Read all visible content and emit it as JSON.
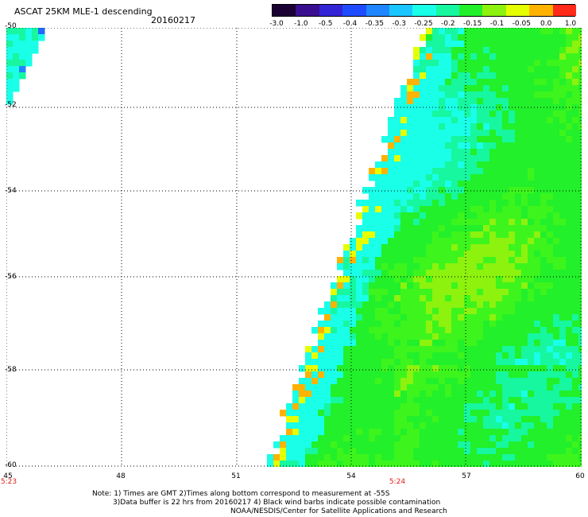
{
  "header": {
    "title": "ASCAT 25KM MLE-1 descending",
    "date": "20160217"
  },
  "colorbar": {
    "labels": [
      "-3.0",
      "-1.0",
      "-0.5",
      "-0.4",
      "-0.35",
      "-0.3",
      "-0.25",
      "-0.2",
      "-0.15",
      "-0.1",
      "-0.05",
      "0.0",
      "1.0"
    ],
    "colors": [
      "#1b0033",
      "#3a0f8f",
      "#3324d6",
      "#1f4bff",
      "#1f86ff",
      "#19c6ff",
      "#1affe8",
      "#16f7a0",
      "#22f02a",
      "#8cf20e",
      "#e6ff00",
      "#ffb300",
      "#ff2a1a"
    ]
  },
  "axes": {
    "lat_labels": [
      "-50",
      "-52",
      "-54",
      "-56",
      "-58",
      "-60"
    ],
    "lon_labels": [
      "45",
      "48",
      "51",
      "54",
      "57",
      "60"
    ],
    "time_labels": [
      "5:23",
      "5:24"
    ]
  },
  "footer": {
    "line1": "Note: 1) Times are GMT 2)Times along bottom correspond to measurement at -55S",
    "line2": "3)Data buffer is 22 hrs from 20160217 4) Black wind barbs indicate possible contamination",
    "line3": "NOAA/NESDIS/Center for Satellite Applications and Research"
  }
}
